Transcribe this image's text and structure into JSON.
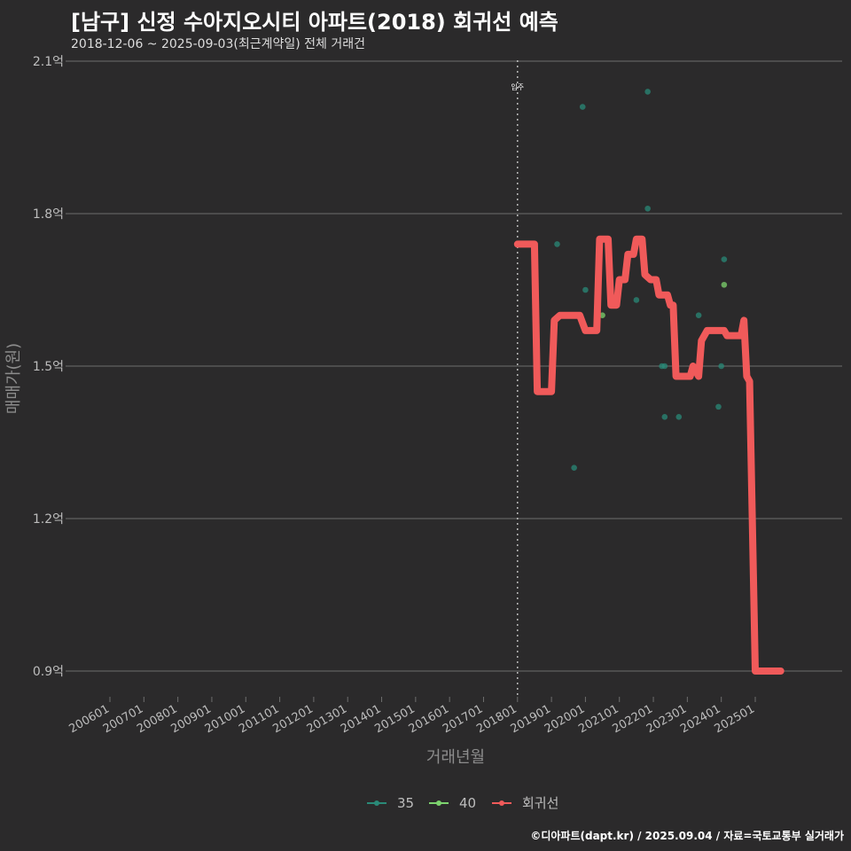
{
  "header": {
    "title": "[남구] 신정 수아지오시티 아파트(2018) 회귀선 예측",
    "subtitle": "2018-12-06 ~ 2025-09-03(최근계약일) 전체 거래건"
  },
  "footer": {
    "credit": "©디아파트(dapt.kr) / 2025.09.04 / 자료=국토교통부 실거래가"
  },
  "colors": {
    "background": "#2b2a2b",
    "grid": "#6e6e6e",
    "series_35": "#2a8a78",
    "series_40": "#7dd36e",
    "regression": "#f05a5a",
    "event_line": "#bbbbbb"
  },
  "chart_data": {
    "type": "scatter",
    "title": "[남구] 신정 수아지오시티 아파트(2018) 회귀선 예측",
    "subtitle": "2018-12-06 ~ 2025-09-03(최근계약일) 전체 거래건",
    "xlabel": "거래년월",
    "ylabel": "매매가(원)",
    "x_ticks": [
      "200601",
      "200701",
      "200801",
      "200901",
      "201001",
      "201101",
      "201201",
      "201301",
      "201401",
      "201501",
      "201601",
      "201701",
      "201801",
      "201901",
      "202001",
      "202101",
      "202201",
      "202301",
      "202401",
      "202501"
    ],
    "y_ticks": [
      "0.9억",
      "1.2억",
      "1.5억",
      "1.8억",
      "2.1억"
    ],
    "y_tick_values": [
      0.9,
      1.2,
      1.5,
      1.8,
      2.1
    ],
    "ylim": [
      0.85,
      2.12
    ],
    "xlim": [
      "2005-01",
      "2026-08"
    ],
    "grid": "horizontal",
    "legend_position": "bottom",
    "event": {
      "label": "입주",
      "x": "2018-01"
    },
    "series": [
      {
        "name": "35",
        "points": [
          [
            "2019-03",
            1.74
          ],
          [
            "2019-09",
            1.3
          ],
          [
            "2019-12",
            2.01
          ],
          [
            "2020-01",
            1.65
          ],
          [
            "2021-07",
            1.63
          ],
          [
            "2021-11",
            2.04
          ],
          [
            "2021-11",
            1.81
          ],
          [
            "2022-04",
            1.5
          ],
          [
            "2022-05",
            1.5
          ],
          [
            "2022-05",
            1.4
          ],
          [
            "2022-10",
            1.4
          ],
          [
            "2023-05",
            1.6
          ],
          [
            "2023-12",
            1.42
          ],
          [
            "2024-01",
            1.5
          ],
          [
            "2024-02",
            1.71
          ]
        ]
      },
      {
        "name": "40",
        "points": [
          [
            "2020-07",
            1.6
          ],
          [
            "2024-02",
            1.66
          ]
        ]
      },
      {
        "name": "회귀선",
        "points": [
          [
            "2018-01",
            1.74
          ],
          [
            "2018-07",
            1.74
          ],
          [
            "2018-08",
            1.45
          ],
          [
            "2019-01",
            1.45
          ],
          [
            "2019-02",
            1.59
          ],
          [
            "2019-04",
            1.6
          ],
          [
            "2019-11",
            1.6
          ],
          [
            "2020-01",
            1.57
          ],
          [
            "2020-05",
            1.57
          ],
          [
            "2020-06",
            1.75
          ],
          [
            "2020-09",
            1.75
          ],
          [
            "2020-10",
            1.62
          ],
          [
            "2020-12",
            1.62
          ],
          [
            "2021-01",
            1.67
          ],
          [
            "2021-03",
            1.67
          ],
          [
            "2021-04",
            1.72
          ],
          [
            "2021-06",
            1.72
          ],
          [
            "2021-07",
            1.75
          ],
          [
            "2021-09",
            1.75
          ],
          [
            "2021-10",
            1.68
          ],
          [
            "2021-12",
            1.67
          ],
          [
            "2022-02",
            1.67
          ],
          [
            "2022-03",
            1.64
          ],
          [
            "2022-06",
            1.64
          ],
          [
            "2022-07",
            1.62
          ],
          [
            "2022-08",
            1.62
          ],
          [
            "2022-09",
            1.48
          ],
          [
            "2023-02",
            1.48
          ],
          [
            "2023-03",
            1.5
          ],
          [
            "2023-05",
            1.48
          ],
          [
            "2023-06",
            1.55
          ],
          [
            "2023-08",
            1.57
          ],
          [
            "2024-02",
            1.57
          ],
          [
            "2024-03",
            1.56
          ],
          [
            "2024-08",
            1.56
          ],
          [
            "2024-09",
            1.59
          ],
          [
            "2024-10",
            1.48
          ],
          [
            "2024-11",
            1.47
          ],
          [
            "2025-01",
            0.9
          ],
          [
            "2025-10",
            0.9
          ]
        ]
      }
    ],
    "legend": [
      "35",
      "40",
      "회귀선"
    ]
  }
}
